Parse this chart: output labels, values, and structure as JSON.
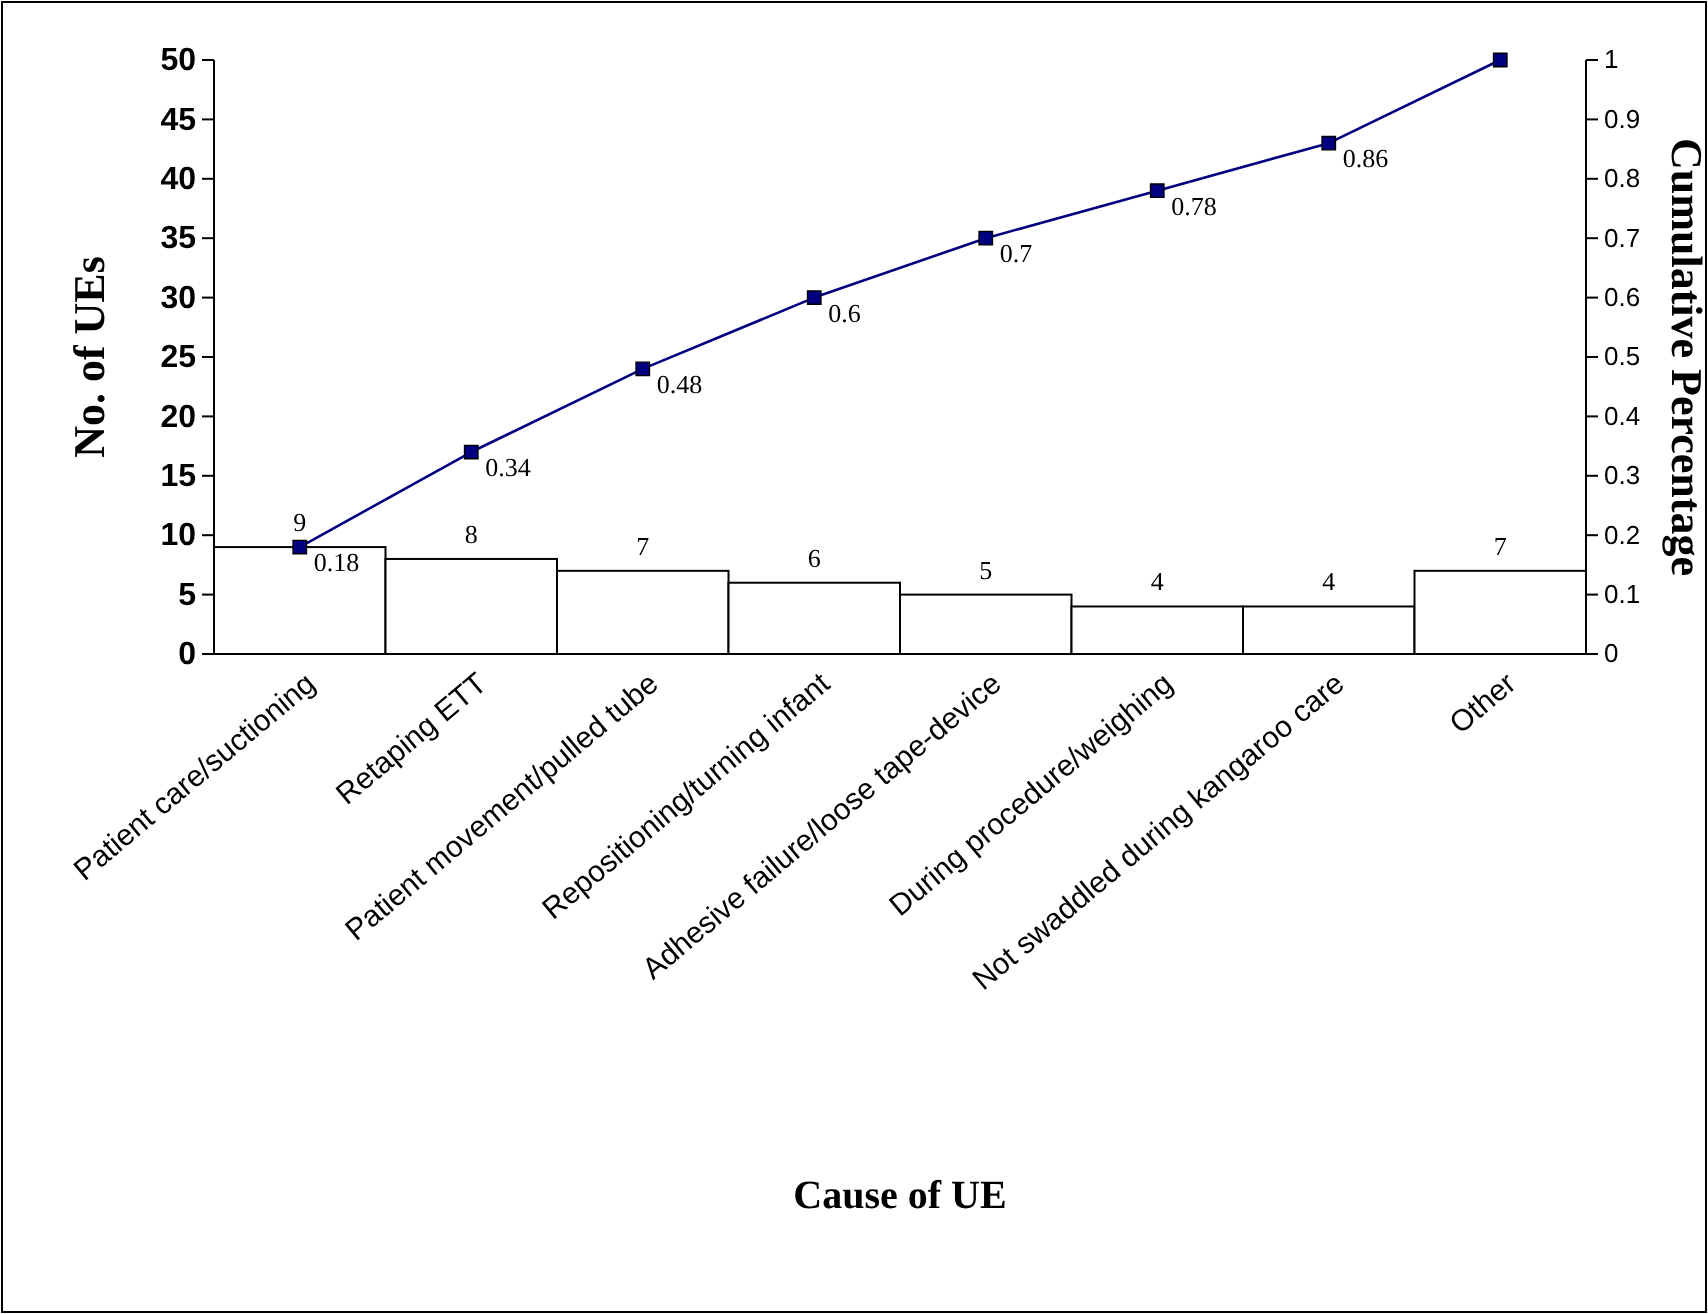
{
  "chart_data": {
    "type": "bar",
    "xlabel": "Cause of UE",
    "ylabel": "No. of UEs",
    "y2label": "Cumulative Percentage",
    "categories": [
      "Patient care/suctioning",
      "Retaping ETT",
      "Patient movement/pulled tube",
      "Repositioning/turning infant",
      "Adhesive failure/loose tape-device",
      "During procedure/weighing",
      "Not swaddled during kangaroo care",
      "Other"
    ],
    "series": [
      {
        "color": "#ffffff",
        "values": [
          9,
          8,
          7,
          6,
          5,
          4,
          4,
          7
        ],
        "value_labels": [
          "9",
          "8",
          "7",
          "6",
          "5",
          "4",
          "4",
          "7"
        ]
      },
      {
        "type": "line",
        "axis": "y2",
        "color": "#000080",
        "values": [
          0.18,
          0.34,
          0.48,
          0.6,
          0.7,
          0.78,
          0.86,
          1
        ],
        "value_labels": [
          "0.18",
          "0.34",
          "0.48",
          "0.6",
          "0.7",
          "0.78",
          "0.86",
          null
        ]
      }
    ],
    "ylim": [
      0,
      50
    ],
    "yticks": [
      0,
      5,
      10,
      15,
      20,
      25,
      30,
      35,
      40,
      45,
      50
    ],
    "y2lim": [
      0,
      1
    ],
    "y2ticks": [
      0,
      0.1,
      0.2,
      0.3,
      0.4,
      0.5,
      0.6,
      0.7,
      0.8,
      0.9,
      1
    ],
    "marker": "square",
    "line_style": "solid",
    "grid": false
  }
}
